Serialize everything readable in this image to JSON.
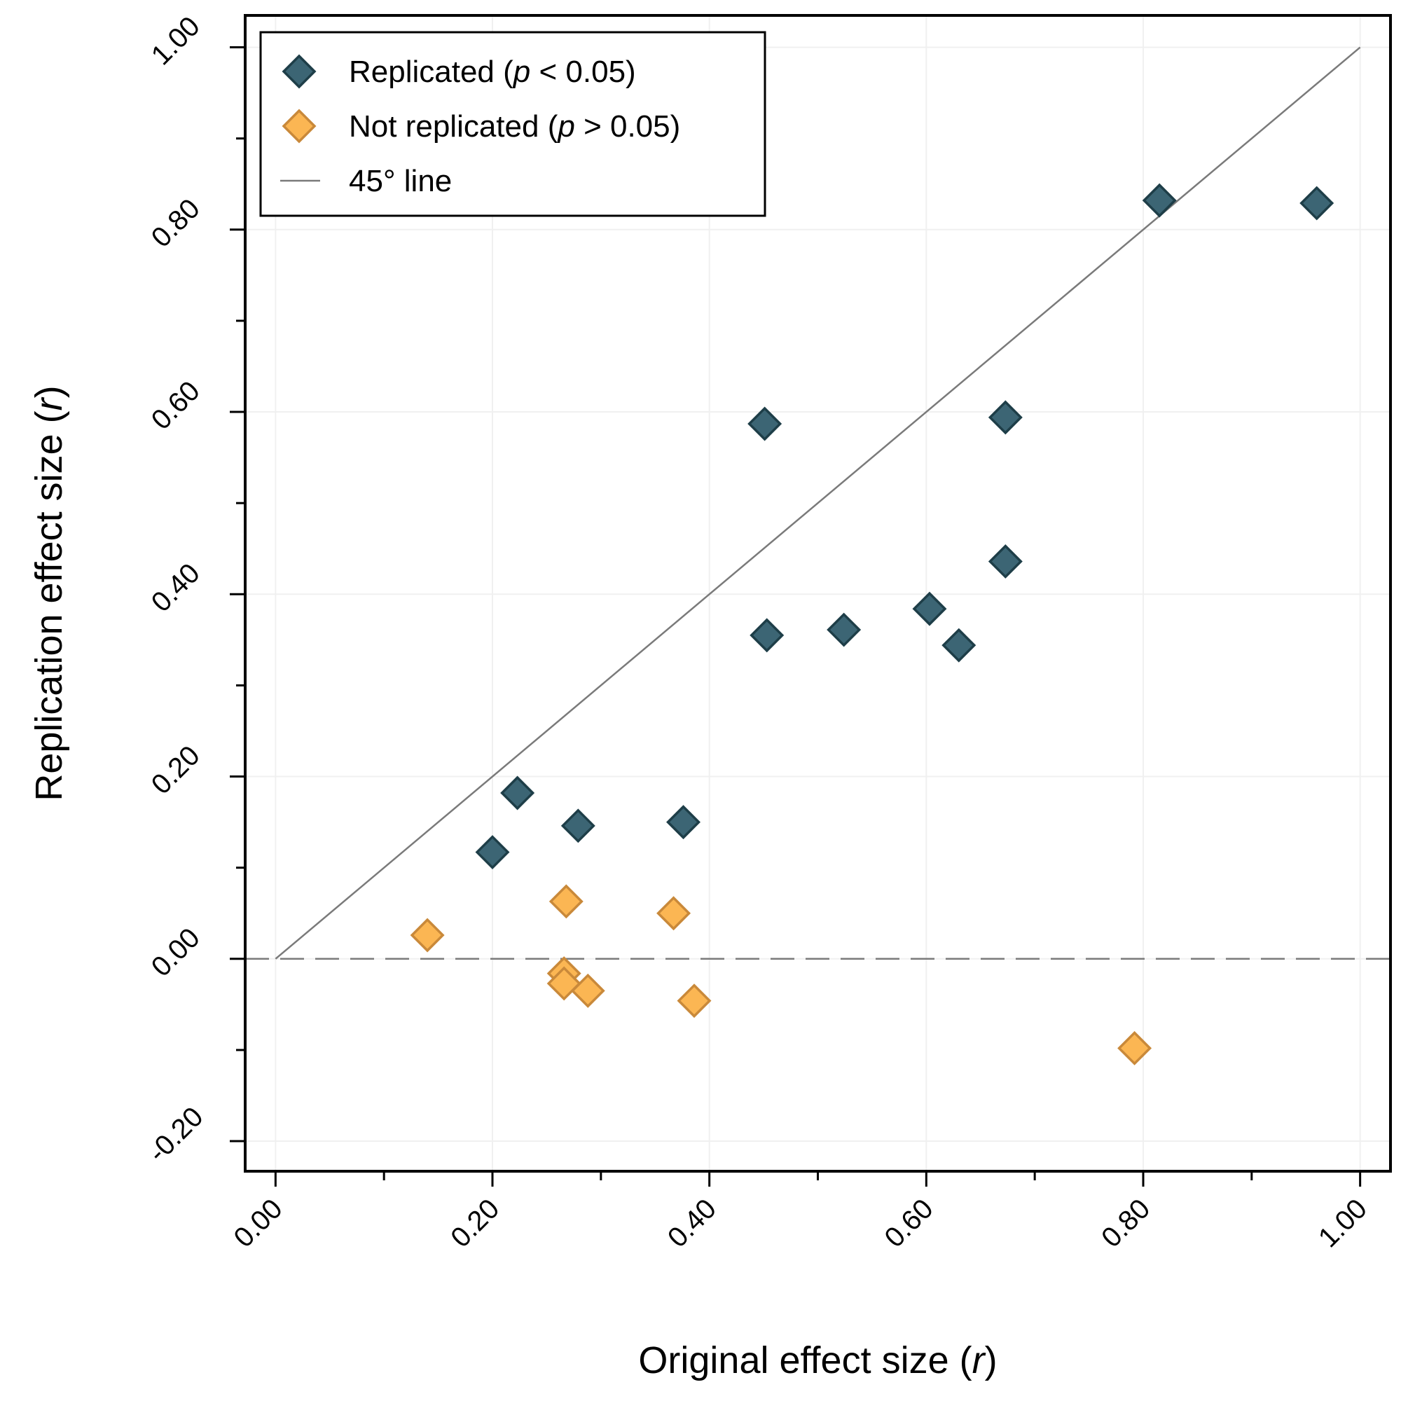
{
  "chart_data": {
    "type": "scatter",
    "xlabel": "Original effect size",
    "xlabel_var": "r",
    "ylabel": "Replication effect size",
    "ylabel_var": "r",
    "xlim": [
      -0.028,
      1.028
    ],
    "ylim": [
      -0.233,
      1.035
    ],
    "xticks": [
      0.0,
      0.2,
      0.4,
      0.6,
      0.8,
      1.0
    ],
    "xtick_labels": [
      "0.00",
      "0.20",
      "0.40",
      "0.60",
      "0.80",
      "1.00"
    ],
    "yticks": [
      -0.2,
      0.0,
      0.2,
      0.4,
      0.6,
      0.8,
      1.0
    ],
    "ytick_labels": [
      "-0.20",
      "0.00",
      "0.20",
      "0.40",
      "0.60",
      "0.80",
      "1.00"
    ],
    "minor_ticks": true,
    "grid": true,
    "reference_lines": [
      {
        "kind": "diagonal",
        "from": [
          0,
          0
        ],
        "to": [
          1,
          1
        ],
        "color": "#7a7a7a"
      },
      {
        "kind": "horizontal-dashed",
        "y": 0,
        "color": "#7a7a7a"
      }
    ],
    "legend": {
      "position": "top-left",
      "entries": [
        {
          "series": 0,
          "text": "Replicated (",
          "var": "p",
          "rest": " < 0.05)"
        },
        {
          "series": 1,
          "text": "Not replicated (",
          "var": "p",
          "rest": " > 0.05)"
        },
        {
          "series": 2,
          "text": "45° line",
          "var": "",
          "rest": ""
        }
      ]
    },
    "series": [
      {
        "marker": "diamond",
        "fill": "#3c6574",
        "stroke": "#1e3e48",
        "points": [
          {
            "x": 0.2,
            "y": 0.117
          },
          {
            "x": 0.223,
            "y": 0.182
          },
          {
            "x": 0.279,
            "y": 0.146
          },
          {
            "x": 0.376,
            "y": 0.15
          },
          {
            "x": 0.451,
            "y": 0.587
          },
          {
            "x": 0.453,
            "y": 0.355
          },
          {
            "x": 0.524,
            "y": 0.361
          },
          {
            "x": 0.603,
            "y": 0.384
          },
          {
            "x": 0.63,
            "y": 0.344
          },
          {
            "x": 0.673,
            "y": 0.594
          },
          {
            "x": 0.673,
            "y": 0.436
          },
          {
            "x": 0.815,
            "y": 0.832
          },
          {
            "x": 0.96,
            "y": 0.829
          }
        ]
      },
      {
        "marker": "diamond",
        "fill": "#fbb653",
        "stroke": "#c9893a",
        "points": [
          {
            "x": 0.14,
            "y": 0.026
          },
          {
            "x": 0.268,
            "y": 0.063
          },
          {
            "x": 0.266,
            "y": -0.016
          },
          {
            "x": 0.266,
            "y": -0.027
          },
          {
            "x": 0.288,
            "y": -0.035
          },
          {
            "x": 0.367,
            "y": 0.05
          },
          {
            "x": 0.386,
            "y": -0.046
          },
          {
            "x": 0.792,
            "y": -0.098
          }
        ]
      },
      {
        "marker": "line",
        "stroke": "#7a7a7a"
      }
    ]
  }
}
